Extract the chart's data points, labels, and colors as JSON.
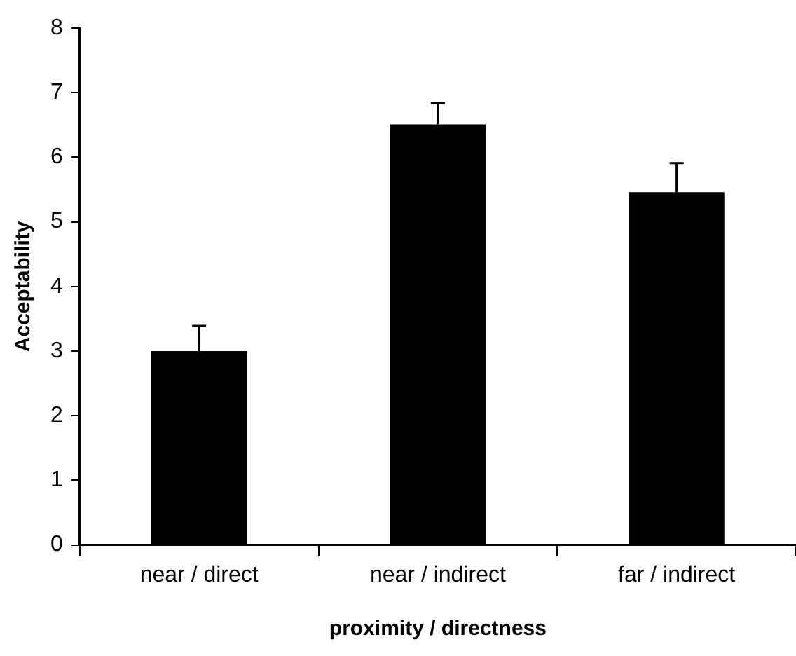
{
  "chart_data": {
    "type": "bar",
    "xlabel": "proximity / directness",
    "ylabel": "Acceptability",
    "categories": [
      "near / direct",
      "near / indirect",
      "far / indirect"
    ],
    "values": [
      3.0,
      6.51,
      5.46
    ],
    "color": "#000000",
    "errors": [
      [
        3.0,
        3.39
      ],
      [
        6.51,
        6.84
      ],
      [
        5.46,
        5.91
      ]
    ],
    "ylim": [
      0,
      8
    ],
    "yticks": [
      0,
      1,
      2,
      3,
      4,
      5,
      6,
      7,
      8
    ],
    "grid": false,
    "legend": false
  }
}
